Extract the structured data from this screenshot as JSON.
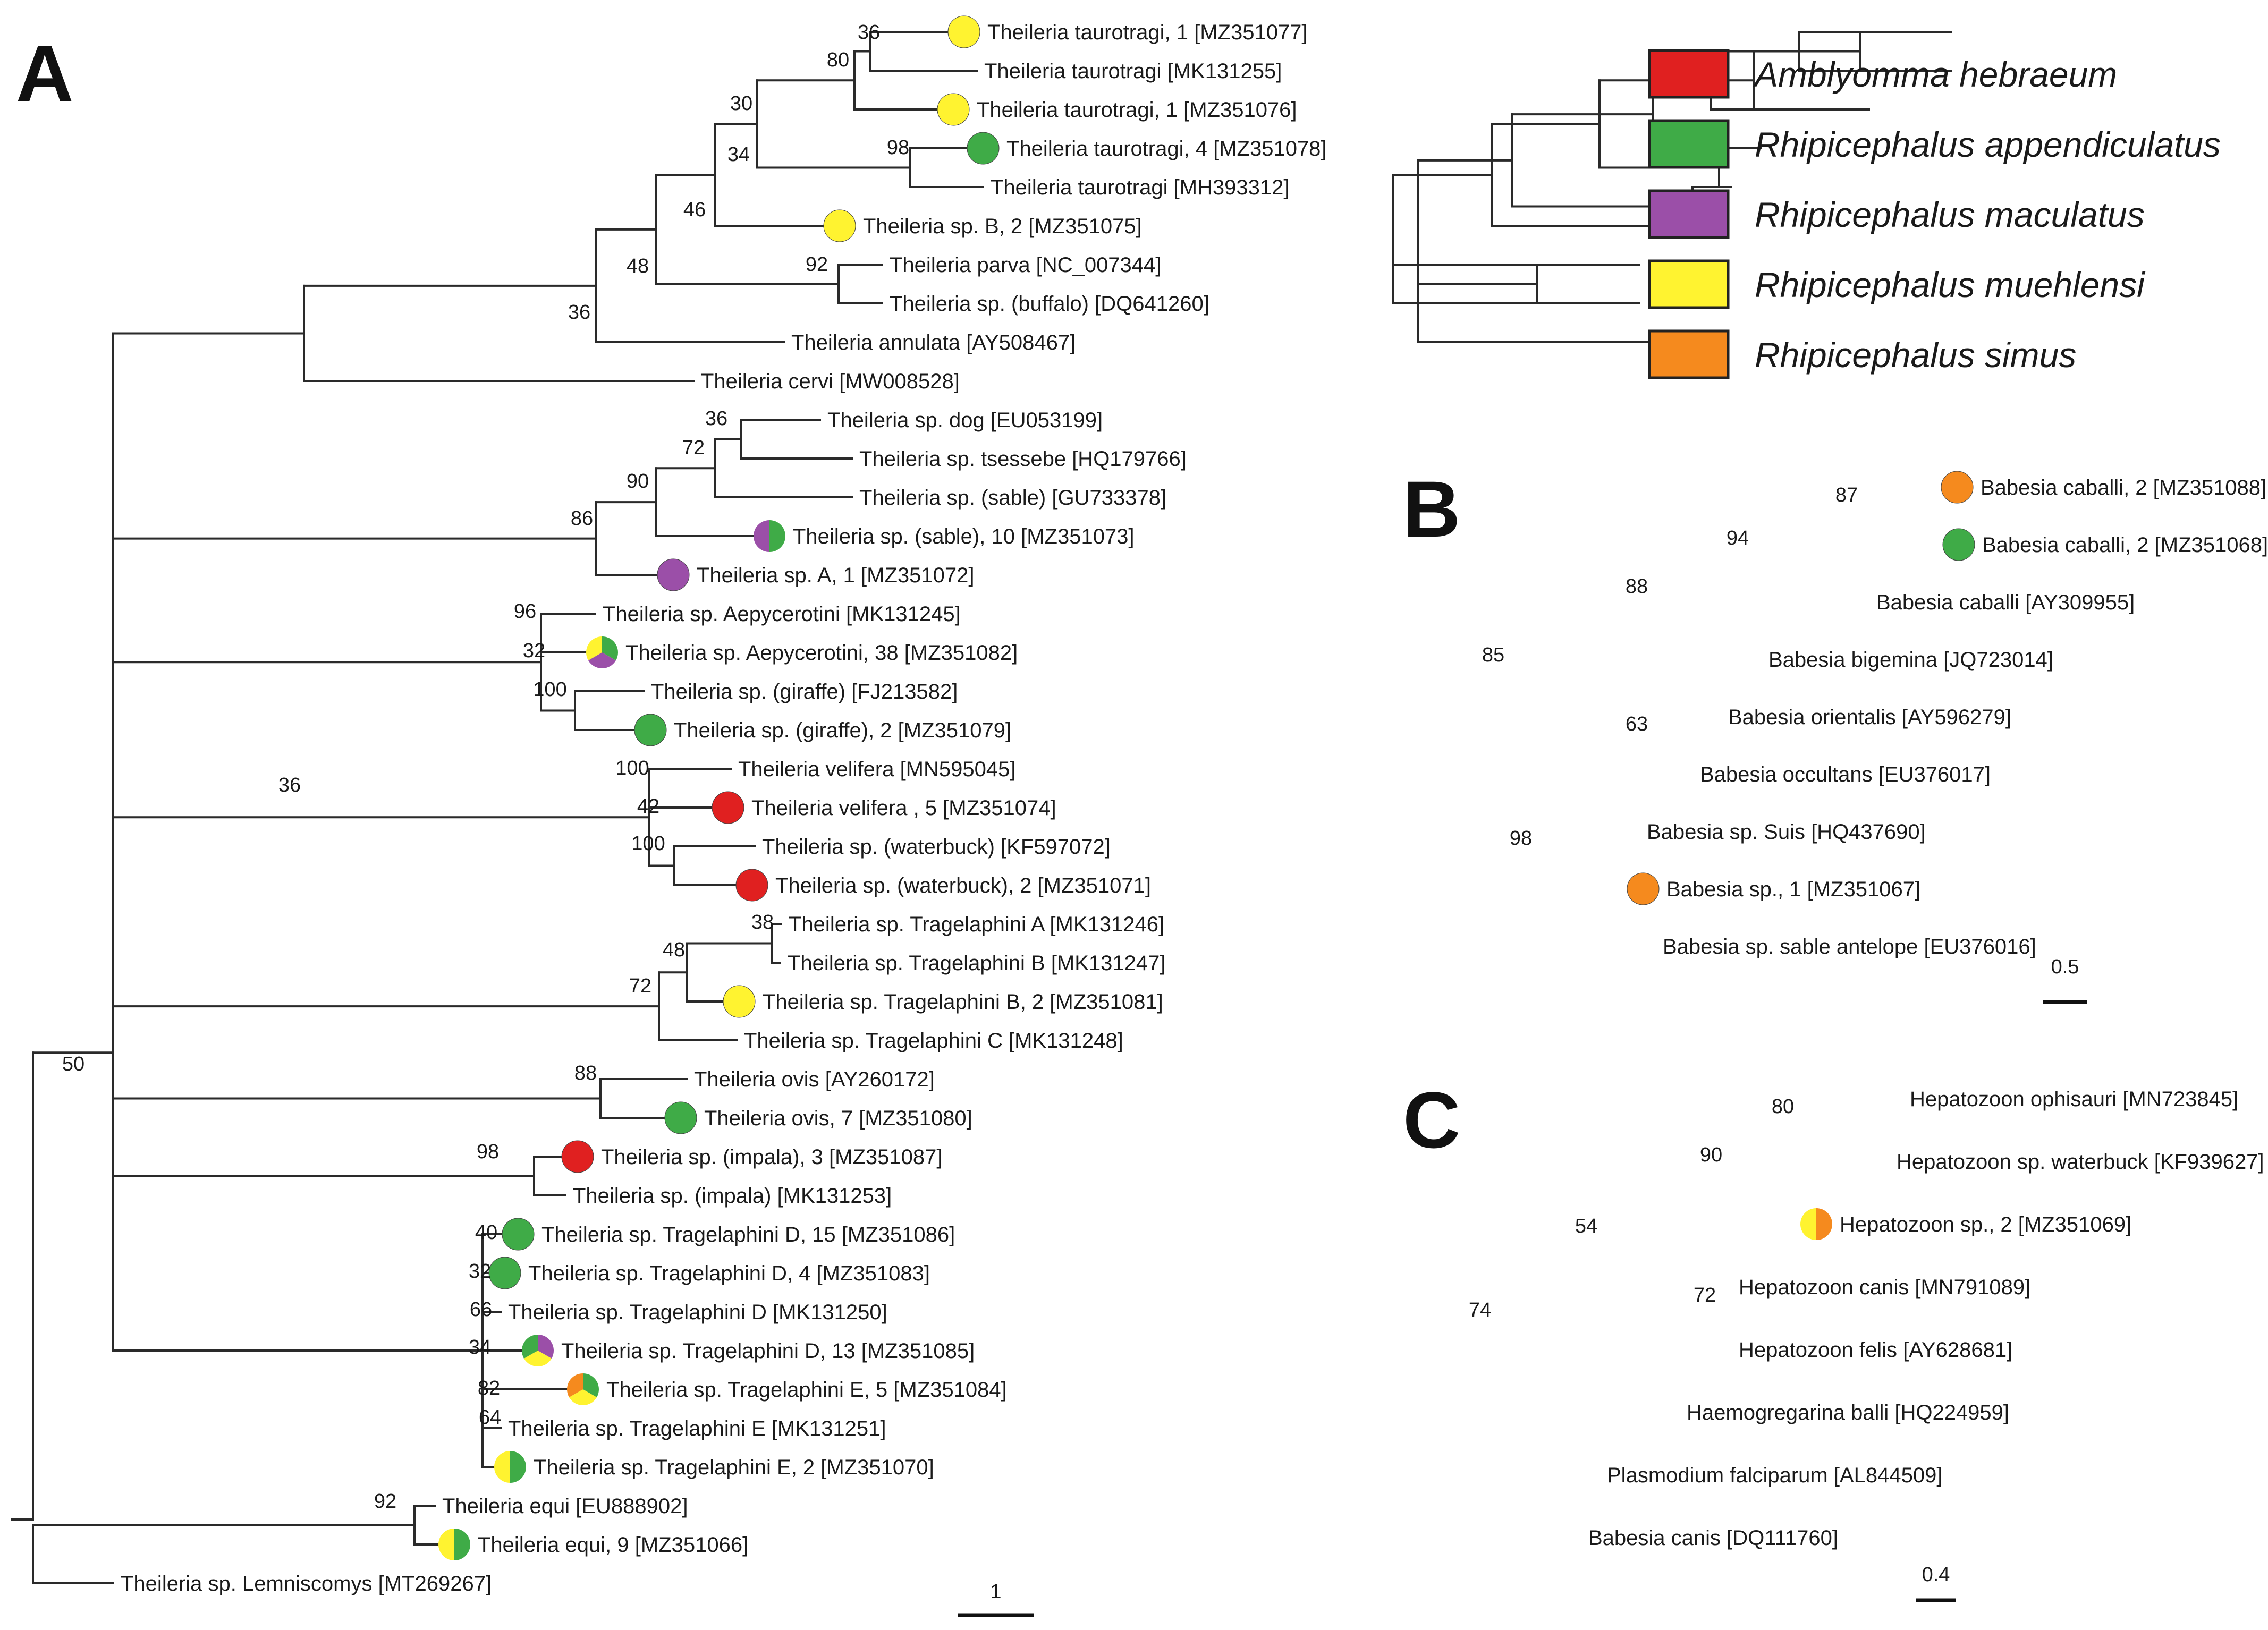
{
  "panels": [
    {
      "letter": "A",
      "scale": "1",
      "leaves": [
        {
          "label": "Theileria taurotragi, 1 [MZ351077]",
          "dot": [
            "yellow"
          ]
        },
        {
          "label": "Theileria taurotragi [MK131255]",
          "dot": []
        },
        {
          "label": "Theileria taurotragi, 1 [MZ351076]",
          "dot": [
            "yellow"
          ]
        },
        {
          "label": "Theileria taurotragi, 4 [MZ351078]",
          "dot": [
            "green"
          ]
        },
        {
          "label": "Theileria taurotragi [MH393312]",
          "dot": []
        },
        {
          "label": "Theileria sp. B, 2 [MZ351075]",
          "dot": [
            "yellow"
          ]
        },
        {
          "label": "Theileria parva [NC_007344]",
          "dot": []
        },
        {
          "label": "Theileria sp. (buffalo) [DQ641260]",
          "dot": []
        },
        {
          "label": "Theileria annulata [AY508467]",
          "dot": []
        },
        {
          "label": "Theileria cervi [MW008528]",
          "dot": []
        },
        {
          "label": "Theileria sp. dog [EU053199]",
          "dot": []
        },
        {
          "label": "Theileria sp. tsessebe [HQ179766]",
          "dot": []
        },
        {
          "label": "Theileria sp. (sable) [GU733378]",
          "dot": []
        },
        {
          "label": "Theileria sp. (sable), 10 [MZ351073]",
          "dot": [
            "green",
            "purple"
          ]
        },
        {
          "label": "Theileria sp.  A, 1 [MZ351072]",
          "dot": [
            "purple"
          ]
        },
        {
          "label": "Theileria sp. Aepycerotini [MK131245]",
          "dot": []
        },
        {
          "label": "Theileria sp. Aepycerotini, 38 [MZ351082]",
          "dot": [
            "green",
            "purple",
            "yellow"
          ]
        },
        {
          "label": "Theileria sp. (giraffe) [FJ213582]",
          "dot": []
        },
        {
          "label": "Theileria sp. (giraffe), 2 [MZ351079]",
          "dot": [
            "green"
          ]
        },
        {
          "label": "Theileria velifera [MN595045]",
          "dot": []
        },
        {
          "label": "Theileria velifera , 5 [MZ351074]",
          "dot": [
            "red"
          ]
        },
        {
          "label": "Theileria sp. (waterbuck) [KF597072]",
          "dot": []
        },
        {
          "label": "Theileria sp. (waterbuck), 2 [MZ351071]",
          "dot": [
            "red"
          ]
        },
        {
          "label": "Theileria sp. Tragelaphini A [MK131246]",
          "dot": []
        },
        {
          "label": "Theileria sp. Tragelaphini B [MK131247]",
          "dot": []
        },
        {
          "label": "Theileria sp. Tragelaphini B, 2 [MZ351081]",
          "dot": [
            "yellow"
          ]
        },
        {
          "label": "Theileria sp. Tragelaphini C [MK131248]",
          "dot": []
        },
        {
          "label": "Theileria ovis [AY260172]",
          "dot": []
        },
        {
          "label": "Theileria ovis, 7 [MZ351080]",
          "dot": [
            "green"
          ]
        },
        {
          "label": "Theileria sp. (impala), 3 [MZ351087]",
          "dot": [
            "red"
          ]
        },
        {
          "label": "Theileria sp. (impala) [MK131253]",
          "dot": []
        },
        {
          "label": "Theileria sp. Tragelaphini D, 15 [MZ351086]",
          "dot": [
            "green"
          ]
        },
        {
          "label": "Theileria sp. Tragelaphini D, 4 [MZ351083]",
          "dot": [
            "green"
          ]
        },
        {
          "label": "Theileria sp. Tragelaphini D [MK131250]",
          "dot": []
        },
        {
          "label": "Theileria sp. Tragelaphini D, 13 [MZ351085]",
          "dot": [
            "purple",
            "yellow",
            "green"
          ]
        },
        {
          "label": "Theileria sp. Tragelaphini E, 5 [MZ351084]",
          "dot": [
            "green",
            "yellow",
            "orange"
          ]
        },
        {
          "label": "Theileria sp. Tragelaphini E [MK131251]",
          "dot": []
        },
        {
          "label": "Theileria sp. Tragelaphini E, 2 [MZ351070]",
          "dot": [
            "green",
            "yellow"
          ]
        },
        {
          "label": "Theileria equi [EU888902]",
          "dot": []
        },
        {
          "label": "Theileria equi, 9 [MZ351066]",
          "dot": [
            "green",
            "yellow"
          ]
        },
        {
          "label": "Theileria sp. Lemniscomys [MT269267]",
          "dot": []
        }
      ],
      "supports": [
        "36",
        "80",
        "30",
        "98",
        "34",
        "46",
        "92",
        "48",
        "36",
        "36",
        "72",
        "90",
        "86",
        "96",
        "32",
        "100",
        "100",
        "42",
        "100",
        "38",
        "48",
        "72",
        "88",
        "98",
        "36",
        "40",
        "32",
        "66",
        "34",
        "82",
        "64",
        "50",
        "92"
      ]
    },
    {
      "letter": "B",
      "scale": "0.5",
      "leaves": [
        {
          "label": "Babesia caballi, 2 [MZ351088]",
          "dot": [
            "orange"
          ]
        },
        {
          "label": "Babesia caballi, 2 [MZ351068]",
          "dot": [
            "green"
          ]
        },
        {
          "label": "Babesia caballi [AY309955]",
          "dot": []
        },
        {
          "label": "Babesia bigemina [JQ723014]",
          "dot": []
        },
        {
          "label": "Babesia orientalis [AY596279]",
          "dot": []
        },
        {
          "label": "Babesia occultans [EU376017]",
          "dot": []
        },
        {
          "label": "Babesia sp. Suis [HQ437690]",
          "dot": []
        },
        {
          "label": "Babesia sp., 1 [MZ351067]",
          "dot": [
            "orange"
          ]
        },
        {
          "label": "Babesia sp. sable antelope [EU376016]",
          "dot": []
        }
      ],
      "supports": [
        "87",
        "94",
        "88",
        "85",
        "63",
        "98"
      ]
    },
    {
      "letter": "C",
      "scale": "0.4",
      "leaves": [
        {
          "label": "Hepatozoon ophisauri [MN723845]",
          "dot": []
        },
        {
          "label": "Hepatozoon sp. waterbuck [KF939627]",
          "dot": []
        },
        {
          "label": "Hepatozoon sp., 2 [MZ351069]",
          "dot": [
            "orange",
            "yellow"
          ]
        },
        {
          "label": "Hepatozoon canis [MN791089]",
          "dot": []
        },
        {
          "label": "Hepatozoon felis [AY628681]",
          "dot": []
        },
        {
          "label": "Haemogregarina balli [HQ224959]",
          "dot": []
        },
        {
          "label": "Plasmodium falciparum [AL844509]",
          "dot": []
        },
        {
          "label": "Babesia canis [DQ111760]",
          "dot": []
        }
      ],
      "supports": [
        "80",
        "90",
        "54",
        "72",
        "74"
      ]
    }
  ],
  "legend": [
    {
      "label": "Amblyomma hebraeum",
      "color": "#e02020"
    },
    {
      "label": "Rhipicephalus appendiculatus",
      "color": "#3fab47"
    },
    {
      "label": "Rhipicephalus maculatus",
      "color": "#9b4fa8"
    },
    {
      "label": "Rhipicephalus muehlensi",
      "color": "#fff330"
    },
    {
      "label": "Rhipicephalus simus",
      "color": "#f58a1e"
    }
  ],
  "colors": {
    "red": "#e02020",
    "green": "#3fab47",
    "purple": "#9b4fa8",
    "yellow": "#fff330",
    "orange": "#f58a1e"
  }
}
